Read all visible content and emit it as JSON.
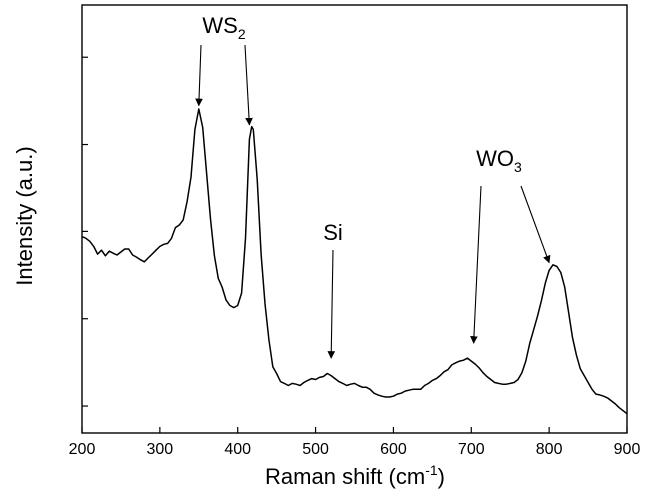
{
  "chart_data": {
    "type": "line",
    "xlabel": "Raman shift (cm",
    "xlabel_sup": "-1",
    "xlabel_close": ")",
    "ylabel": "Intensity (a.u.)",
    "xlim": [
      200,
      900
    ],
    "ylim": [
      0,
      100
    ],
    "x_ticks": [
      200,
      300,
      400,
      500,
      600,
      700,
      800,
      900
    ],
    "y_tick_values": [
      6.3,
      26.7,
      47.1,
      67.4,
      87.8
    ],
    "grid": false,
    "series": [
      {
        "color": "#000000",
        "points": [
          [
            200,
            45.9
          ],
          [
            205,
            45.5
          ],
          [
            210,
            44.8
          ],
          [
            215,
            43.6
          ],
          [
            220,
            41.8
          ],
          [
            225,
            42.7
          ],
          [
            230,
            41.4
          ],
          [
            235,
            42.5
          ],
          [
            240,
            42.0
          ],
          [
            245,
            41.6
          ],
          [
            250,
            42.3
          ],
          [
            255,
            43.0
          ],
          [
            260,
            43.0
          ],
          [
            265,
            41.6
          ],
          [
            270,
            41.1
          ],
          [
            275,
            40.5
          ],
          [
            280,
            40.0
          ],
          [
            285,
            40.9
          ],
          [
            290,
            41.8
          ],
          [
            295,
            42.7
          ],
          [
            300,
            43.6
          ],
          [
            305,
            44.1
          ],
          [
            310,
            44.3
          ],
          [
            315,
            45.5
          ],
          [
            320,
            48.0
          ],
          [
            325,
            48.6
          ],
          [
            330,
            49.8
          ],
          [
            335,
            54.1
          ],
          [
            340,
            59.8
          ],
          [
            345,
            70.9
          ],
          [
            350,
            75.7
          ],
          [
            355,
            71.4
          ],
          [
            360,
            60.7
          ],
          [
            365,
            50.0
          ],
          [
            370,
            41.4
          ],
          [
            375,
            36.1
          ],
          [
            380,
            34.1
          ],
          [
            385,
            31.1
          ],
          [
            390,
            29.8
          ],
          [
            395,
            29.3
          ],
          [
            400,
            29.8
          ],
          [
            405,
            32.7
          ],
          [
            410,
            45.5
          ],
          [
            415,
            68.6
          ],
          [
            418,
            71.6
          ],
          [
            420,
            70.9
          ],
          [
            425,
            59.3
          ],
          [
            430,
            41.8
          ],
          [
            435,
            30.2
          ],
          [
            440,
            21.8
          ],
          [
            445,
            15.5
          ],
          [
            450,
            13.9
          ],
          [
            455,
            12.0
          ],
          [
            460,
            11.6
          ],
          [
            465,
            11.1
          ],
          [
            470,
            11.6
          ],
          [
            475,
            11.4
          ],
          [
            480,
            11.1
          ],
          [
            485,
            11.8
          ],
          [
            490,
            12.3
          ],
          [
            495,
            12.7
          ],
          [
            500,
            12.5
          ],
          [
            505,
            13.0
          ],
          [
            510,
            13.2
          ],
          [
            515,
            13.9
          ],
          [
            520,
            13.4
          ],
          [
            525,
            12.7
          ],
          [
            530,
            12.0
          ],
          [
            535,
            11.6
          ],
          [
            540,
            11.1
          ],
          [
            545,
            11.4
          ],
          [
            550,
            11.6
          ],
          [
            555,
            11.1
          ],
          [
            560,
            10.7
          ],
          [
            565,
            10.7
          ],
          [
            570,
            10.2
          ],
          [
            575,
            9.3
          ],
          [
            580,
            8.9
          ],
          [
            585,
            8.6
          ],
          [
            590,
            8.4
          ],
          [
            595,
            8.4
          ],
          [
            600,
            8.6
          ],
          [
            605,
            9.1
          ],
          [
            610,
            9.3
          ],
          [
            615,
            9.8
          ],
          [
            620,
            10.0
          ],
          [
            625,
            10.2
          ],
          [
            630,
            10.2
          ],
          [
            635,
            10.2
          ],
          [
            640,
            11.1
          ],
          [
            645,
            11.6
          ],
          [
            650,
            12.3
          ],
          [
            655,
            12.7
          ],
          [
            660,
            13.4
          ],
          [
            665,
            14.3
          ],
          [
            670,
            14.8
          ],
          [
            675,
            15.9
          ],
          [
            680,
            16.4
          ],
          [
            685,
            16.8
          ],
          [
            690,
            17.0
          ],
          [
            695,
            17.5
          ],
          [
            700,
            16.8
          ],
          [
            705,
            16.1
          ],
          [
            710,
            15.2
          ],
          [
            715,
            14.1
          ],
          [
            720,
            13.2
          ],
          [
            725,
            12.5
          ],
          [
            730,
            11.8
          ],
          [
            735,
            11.6
          ],
          [
            740,
            11.4
          ],
          [
            745,
            11.4
          ],
          [
            750,
            11.6
          ],
          [
            755,
            11.8
          ],
          [
            760,
            12.5
          ],
          [
            765,
            14.1
          ],
          [
            770,
            16.8
          ],
          [
            775,
            20.9
          ],
          [
            780,
            24.1
          ],
          [
            785,
            27.3
          ],
          [
            790,
            30.9
          ],
          [
            795,
            35.0
          ],
          [
            800,
            38.0
          ],
          [
            805,
            39.3
          ],
          [
            810,
            38.9
          ],
          [
            815,
            37.5
          ],
          [
            820,
            34.1
          ],
          [
            825,
            28.2
          ],
          [
            830,
            22.3
          ],
          [
            835,
            18.2
          ],
          [
            840,
            15.0
          ],
          [
            845,
            13.4
          ],
          [
            850,
            11.8
          ],
          [
            855,
            10.2
          ],
          [
            860,
            9.1
          ],
          [
            865,
            8.9
          ],
          [
            870,
            8.6
          ],
          [
            875,
            8.2
          ],
          [
            880,
            7.5
          ],
          [
            885,
            6.8
          ],
          [
            890,
            5.9
          ],
          [
            895,
            5.2
          ],
          [
            900,
            4.5
          ]
        ]
      }
    ],
    "annotations": [
      {
        "text": "WS",
        "sub": "2",
        "arrows": [
          {
            "x": 350,
            "tip_y": 76.5
          },
          {
            "x": 415,
            "tip_y": 72.0
          }
        ]
      },
      {
        "text": "Si",
        "arrows": [
          {
            "x": 520,
            "tip_y": 17.5
          }
        ]
      },
      {
        "text": "WO",
        "sub": "3",
        "arrows": [
          {
            "x": 703,
            "tip_y": 21.0
          },
          {
            "x": 800,
            "tip_y": 39.8
          }
        ]
      }
    ]
  }
}
